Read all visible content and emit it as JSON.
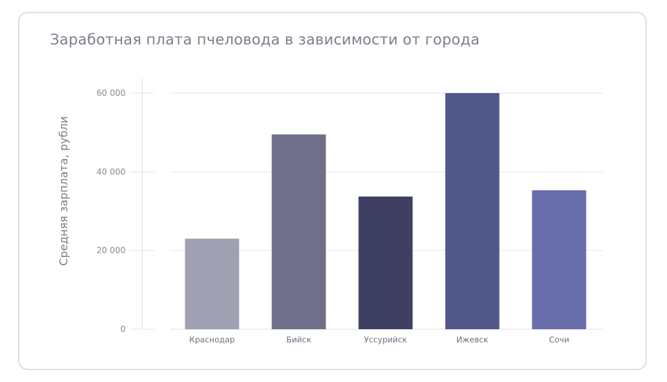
{
  "chart_data": {
    "type": "bar",
    "title": "Заработная плата пчеловода в зависимости от города",
    "xlabel": "",
    "ylabel": "Средняя зарплата, рубли",
    "categories": [
      "Краснодар",
      "Бийск",
      "Уссурийск",
      "Ижевск",
      "Сочи"
    ],
    "values": [
      23000,
      49500,
      33700,
      60000,
      35300
    ],
    "colors": [
      "#a0a0b3",
      "#6f6f89",
      "#3e3f63",
      "#52578a",
      "#686dab"
    ],
    "ylim": [
      0,
      60000
    ],
    "yticks": [
      0,
      20000,
      40000,
      60000
    ],
    "ytick_labels": [
      "0",
      "20 000",
      "40 000",
      "60 000"
    ],
    "grid": true,
    "legend": "none"
  }
}
